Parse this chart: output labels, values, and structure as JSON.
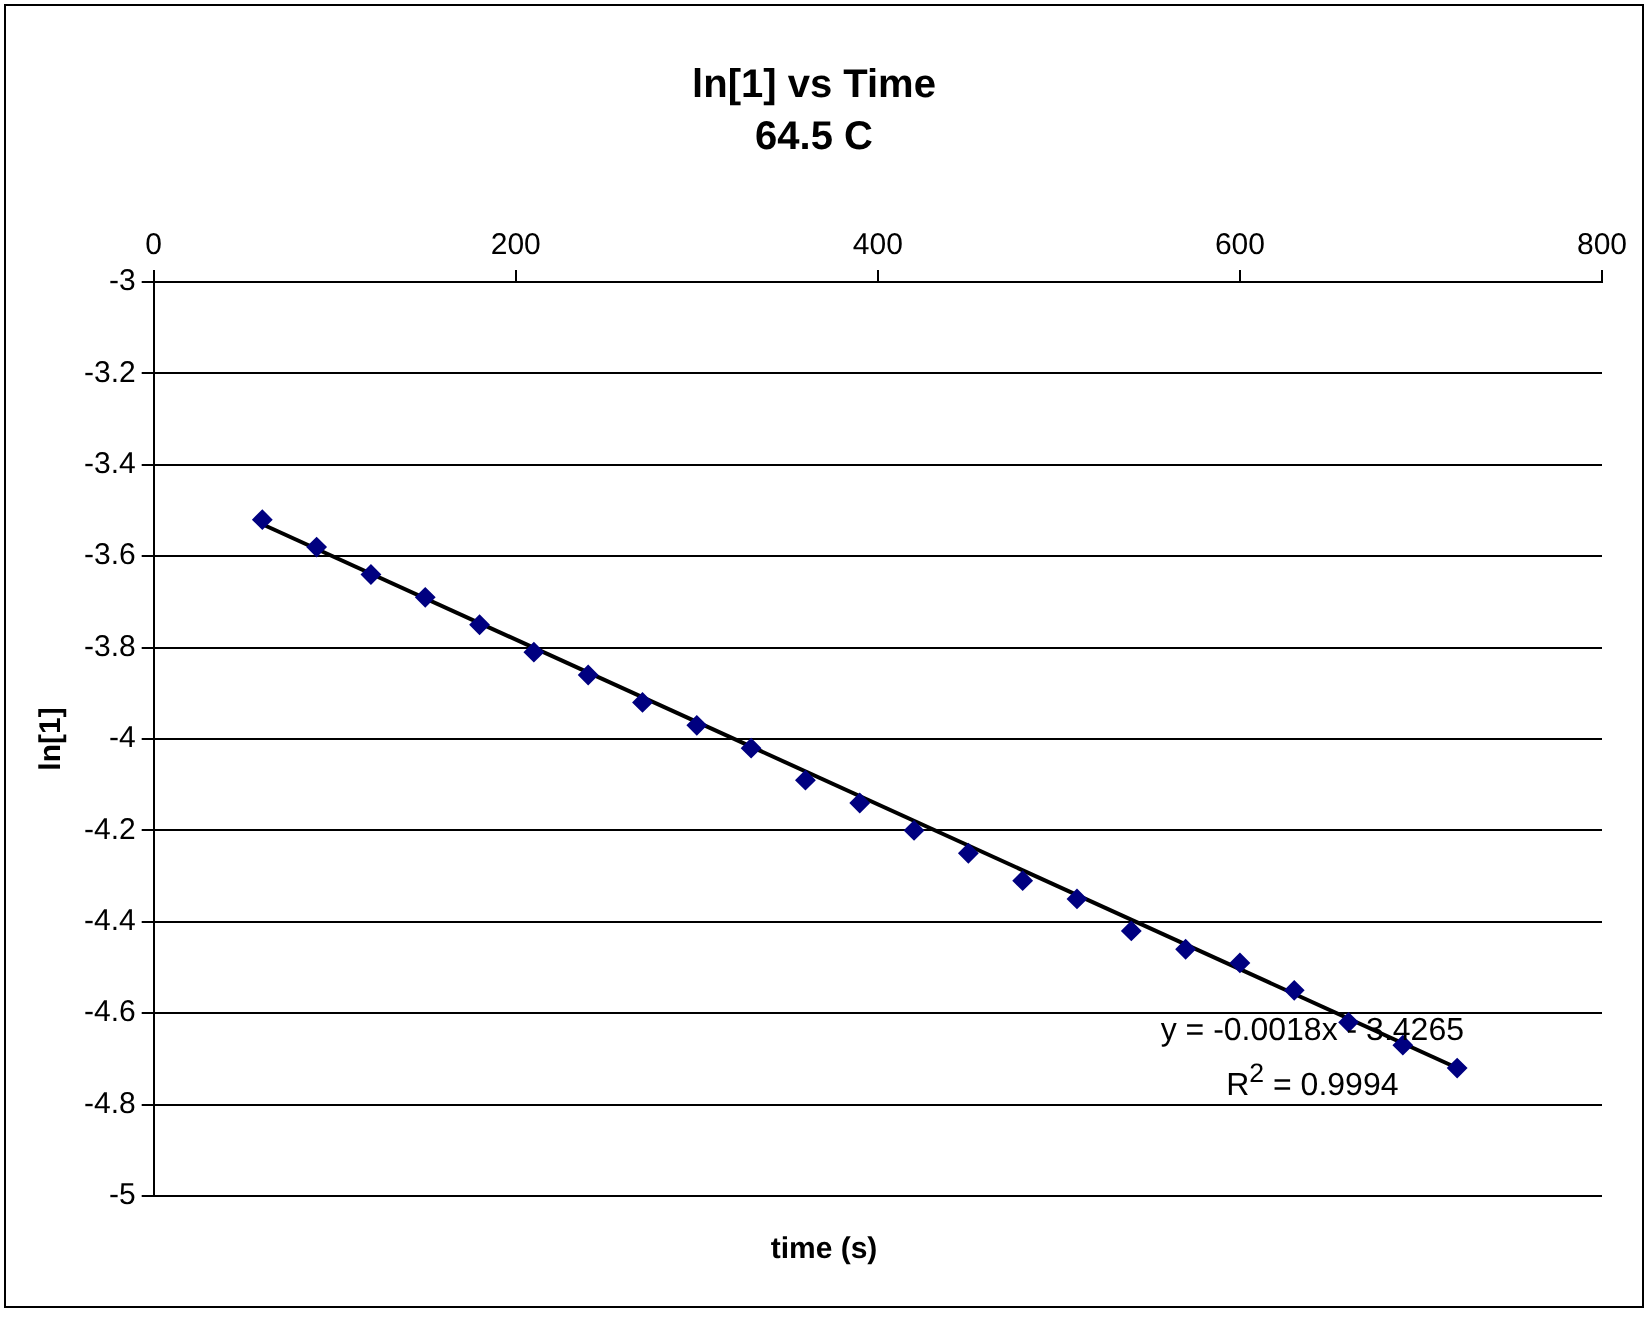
{
  "chart_data": {
    "type": "scatter",
    "title": "ln[1] vs Time",
    "subtitle": "64.5 C",
    "xlabel": "time (s)",
    "ylabel": "ln[1]",
    "series": [
      {
        "type": "scatter",
        "color": "#000080",
        "x": [
          60,
          90,
          120,
          150,
          180,
          210,
          240,
          270,
          300,
          330,
          360,
          390,
          420,
          450,
          480,
          510,
          540,
          570,
          600,
          630,
          660,
          690,
          720
        ],
        "values": [
          -3.52,
          -3.58,
          -3.64,
          -3.69,
          -3.75,
          -3.81,
          -3.86,
          -3.92,
          -3.97,
          -4.02,
          -4.09,
          -4.14,
          -4.2,
          -4.25,
          -4.31,
          -4.35,
          -4.42,
          -4.46,
          -4.49,
          -4.55,
          -4.62,
          -4.67,
          -4.72
        ]
      },
      {
        "type": "line",
        "color": "#000000",
        "marker": "none",
        "x": [
          60,
          720
        ],
        "values": [
          -3.53,
          -4.72
        ]
      }
    ],
    "xlim": [
      0,
      800
    ],
    "xticks": [
      0,
      200,
      400,
      600,
      800
    ],
    "ylim": [
      -5,
      -3
    ],
    "yticks": [
      -5,
      -4.8,
      -4.6,
      -4.4,
      -4.2,
      -4,
      -3.8,
      -3.6,
      -3.4,
      -3.2,
      -3
    ],
    "grid": "y",
    "marker": "diamond",
    "legend": false,
    "annotations": [
      "y = -0.0018x - 3.4265",
      "R$^{2}$ = 0.9994"
    ]
  }
}
